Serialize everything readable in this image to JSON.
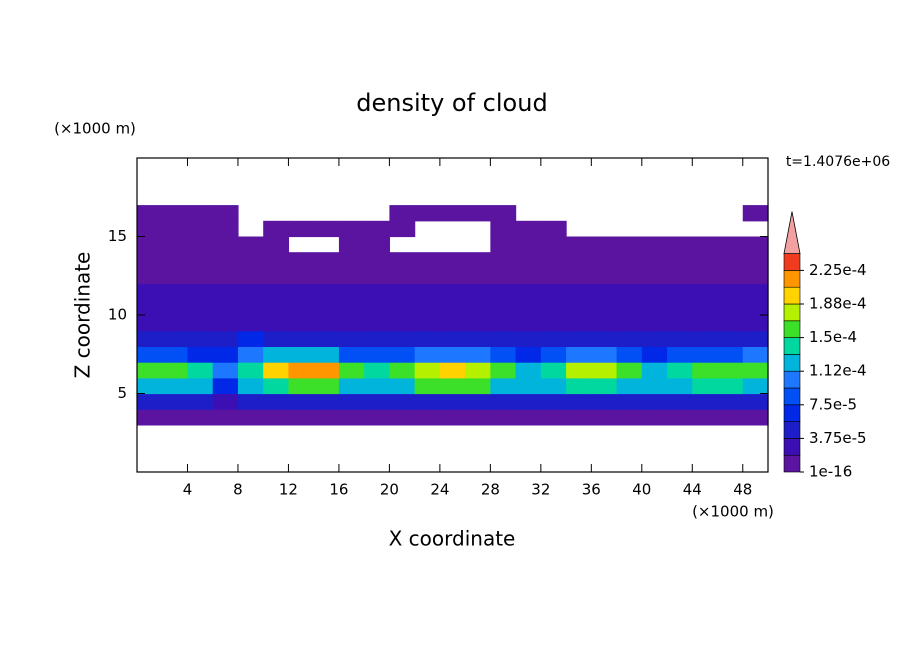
{
  "chart_data": {
    "type": "contour",
    "title": "density of cloud",
    "x_label": "X coordinate",
    "y_label": "Z coordinate",
    "x_unit": "(×1000 m)",
    "y_unit": "(×1000 m)",
    "time_label": "t=1.4076e+06",
    "xlim": [
      0,
      50
    ],
    "ylim": [
      0,
      20
    ],
    "xticks": [
      4,
      8,
      12,
      16,
      20,
      24,
      28,
      32,
      36,
      40,
      44,
      48
    ],
    "yticks": [
      5,
      10,
      15
    ],
    "x": [
      1,
      3,
      5,
      7,
      9,
      11,
      13,
      15,
      17,
      19,
      21,
      23,
      25,
      27,
      29,
      31,
      33,
      35,
      37,
      39,
      41,
      43,
      45,
      47,
      49
    ],
    "y": [
      0.5,
      1.5,
      2.5,
      3.5,
      4.5,
      5.5,
      6.5,
      7.5,
      8.5,
      9.5,
      10.5,
      11.5,
      12.5,
      13.5,
      14.5,
      15.5,
      16.5,
      17.5,
      18.5,
      19.5
    ],
    "z": [
      [
        null,
        null,
        null,
        null,
        null,
        null,
        null,
        null,
        null,
        null,
        null,
        null,
        null,
        null,
        null,
        null,
        null,
        null,
        null,
        null,
        null,
        null,
        null,
        null,
        null
      ],
      [
        null,
        null,
        null,
        null,
        null,
        null,
        null,
        null,
        null,
        null,
        null,
        null,
        null,
        null,
        null,
        null,
        null,
        null,
        null,
        null,
        null,
        null,
        null,
        null,
        null
      ],
      [
        null,
        null,
        null,
        null,
        null,
        null,
        null,
        null,
        null,
        null,
        null,
        null,
        null,
        null,
        null,
        null,
        null,
        null,
        null,
        null,
        null,
        null,
        null,
        null,
        null
      ],
      [
        1e-05,
        1e-05,
        1e-05,
        1e-05,
        1e-05,
        1e-05,
        1e-05,
        1e-05,
        1e-05,
        1e-05,
        1e-05,
        1e-05,
        1e-05,
        1e-05,
        1e-05,
        1e-05,
        1e-05,
        1e-05,
        1e-05,
        1e-05,
        1e-05,
        1e-05,
        1e-05,
        1e-05,
        1e-05
      ],
      [
        4e-05,
        4e-05,
        4e-05,
        2e-05,
        4e-05,
        4e-05,
        4e-05,
        4e-05,
        4e-05,
        4e-05,
        4e-05,
        4e-05,
        4e-05,
        4e-05,
        4e-05,
        4e-05,
        4e-05,
        4e-05,
        4e-05,
        4e-05,
        4e-05,
        4e-05,
        4e-05,
        4e-05,
        4e-05
      ],
      [
        0.00012,
        0.00012,
        0.00012,
        6e-05,
        0.00012,
        0.00014,
        0.00016,
        0.00016,
        0.00012,
        0.00012,
        0.00012,
        0.00015,
        0.00015,
        0.00015,
        0.00012,
        0.00012,
        0.00012,
        0.00014,
        0.00014,
        0.00012,
        0.00012,
        0.00012,
        0.00014,
        0.00014,
        0.00012
      ],
      [
        0.00015,
        0.00016,
        0.00014,
        0.0001,
        0.00014,
        0.0002,
        0.00022,
        0.00021,
        0.00016,
        0.00014,
        0.00015,
        0.00018,
        0.00019,
        0.00017,
        0.00015,
        0.00013,
        0.00014,
        0.00017,
        0.00018,
        0.00015,
        0.00013,
        0.00014,
        0.00016,
        0.00015,
        0.00016
      ],
      [
        9e-05,
        8e-05,
        6e-05,
        7e-05,
        0.0001,
        0.00012,
        0.00013,
        0.00012,
        9e-05,
        8e-05,
        9e-05,
        0.00011,
        0.00011,
        0.0001,
        8e-05,
        7e-05,
        9e-05,
        0.0001,
        0.0001,
        8e-05,
        7e-05,
        8e-05,
        9e-05,
        9e-05,
        0.0001
      ],
      [
        4e-05,
        4e-05,
        4e-05,
        4e-05,
        6e-05,
        5e-05,
        4e-05,
        4e-05,
        4e-05,
        4e-05,
        4e-05,
        4e-05,
        4e-05,
        4e-05,
        4e-05,
        4e-05,
        4e-05,
        4e-05,
        4e-05,
        4e-05,
        4e-05,
        4e-05,
        4e-05,
        4e-05,
        4e-05
      ],
      [
        3e-05,
        3e-05,
        3e-05,
        3e-05,
        3e-05,
        3e-05,
        3e-05,
        3e-05,
        3e-05,
        3e-05,
        3e-05,
        3e-05,
        3e-05,
        3e-05,
        3e-05,
        3e-05,
        3e-05,
        3e-05,
        3e-05,
        3e-05,
        3e-05,
        3e-05,
        3e-05,
        3e-05,
        3e-05
      ],
      [
        2.5e-05,
        2.5e-05,
        2.5e-05,
        2.5e-05,
        2.5e-05,
        2.5e-05,
        2.5e-05,
        2.5e-05,
        2.5e-05,
        2.5e-05,
        2.5e-05,
        2.5e-05,
        2.5e-05,
        2.5e-05,
        2.5e-05,
        2.5e-05,
        2.5e-05,
        2.5e-05,
        2.5e-05,
        2.5e-05,
        2.5e-05,
        2.5e-05,
        2.5e-05,
        2.5e-05,
        2.5e-05
      ],
      [
        2e-05,
        2e-05,
        2e-05,
        2e-05,
        2e-05,
        2e-05,
        2e-05,
        2e-05,
        2e-05,
        2e-05,
        2e-05,
        2e-05,
        2e-05,
        2e-05,
        2e-05,
        2e-05,
        2e-05,
        2e-05,
        2e-05,
        2e-05,
        2e-05,
        2e-05,
        2e-05,
        2e-05,
        2e-05
      ],
      [
        1e-05,
        1e-05,
        1e-05,
        1e-05,
        1e-05,
        1e-05,
        1e-05,
        1e-05,
        1e-05,
        1e-05,
        1e-05,
        1e-05,
        1e-05,
        1e-05,
        1e-05,
        1e-05,
        1e-05,
        1e-05,
        1e-05,
        1e-05,
        1e-05,
        1e-05,
        1e-05,
        1e-05,
        1e-05
      ],
      [
        5e-06,
        5e-06,
        5e-06,
        5e-06,
        5e-06,
        5e-06,
        5e-06,
        5e-06,
        5e-06,
        5e-06,
        5e-06,
        5e-06,
        5e-06,
        5e-06,
        5e-06,
        5e-06,
        5e-06,
        5e-06,
        5e-06,
        5e-06,
        5e-06,
        5e-06,
        5e-06,
        5e-06,
        5e-06
      ],
      [
        5e-06,
        5e-06,
        5e-06,
        5e-06,
        5e-06,
        5e-06,
        null,
        null,
        5e-06,
        5e-06,
        null,
        null,
        null,
        null,
        5e-06,
        5e-06,
        5e-06,
        5e-06,
        5e-06,
        5e-06,
        5e-06,
        5e-06,
        5e-06,
        5e-06,
        5e-06
      ],
      [
        5e-06,
        5e-06,
        5e-06,
        5e-06,
        null,
        5e-06,
        5e-06,
        5e-06,
        5e-06,
        5e-06,
        5e-06,
        null,
        null,
        null,
        5e-06,
        5e-06,
        5e-06,
        null,
        null,
        null,
        null,
        null,
        null,
        null,
        null
      ],
      [
        5e-06,
        5e-06,
        5e-06,
        5e-06,
        null,
        null,
        null,
        null,
        null,
        null,
        5e-06,
        5e-06,
        5e-06,
        5e-06,
        5e-06,
        null,
        null,
        null,
        null,
        null,
        null,
        null,
        null,
        null,
        5e-06
      ],
      [
        null,
        null,
        null,
        null,
        null,
        null,
        null,
        null,
        null,
        null,
        null,
        null,
        null,
        null,
        null,
        null,
        null,
        null,
        null,
        null,
        null,
        null,
        null,
        null,
        null
      ],
      [
        null,
        null,
        null,
        null,
        null,
        null,
        null,
        null,
        null,
        null,
        null,
        null,
        null,
        null,
        null,
        null,
        null,
        null,
        null,
        null,
        null,
        null,
        null,
        null,
        null
      ],
      [
        null,
        null,
        null,
        null,
        null,
        null,
        null,
        null,
        null,
        null,
        null,
        null,
        null,
        null,
        null,
        null,
        null,
        null,
        null,
        null,
        null,
        null,
        null,
        null,
        null
      ]
    ],
    "colorbar": {
      "levels": [
        1e-16,
        1.875e-05,
        3.75e-05,
        5.625e-05,
        7.5e-05,
        9.375e-05,
        0.0001125,
        0.00013125,
        0.00015,
        0.00016875,
        0.0001875,
        0.00020625,
        0.000225,
        0.00024375
      ],
      "colors": [
        "#5a14a0",
        "#3c0fb4",
        "#1e1ec8",
        "#0028e6",
        "#0050f5",
        "#1e78ff",
        "#00b4dc",
        "#00d8a0",
        "#3ce028",
        "#b4f000",
        "#ffd200",
        "#ff9600",
        "#f03c1e",
        "#f4a0a0"
      ],
      "ticks": [
        {
          "value": 1e-16,
          "label": "1e-16"
        },
        {
          "value": 3.75e-05,
          "label": "3.75e-5"
        },
        {
          "value": 7.5e-05,
          "label": "7.5e-5"
        },
        {
          "value": 0.0001125,
          "label": "1.12e-4"
        },
        {
          "value": 0.00015,
          "label": "1.5e-4"
        },
        {
          "value": 0.0001875,
          "label": "1.88e-4"
        },
        {
          "value": 0.000225,
          "label": "2.25e-4"
        }
      ]
    }
  }
}
